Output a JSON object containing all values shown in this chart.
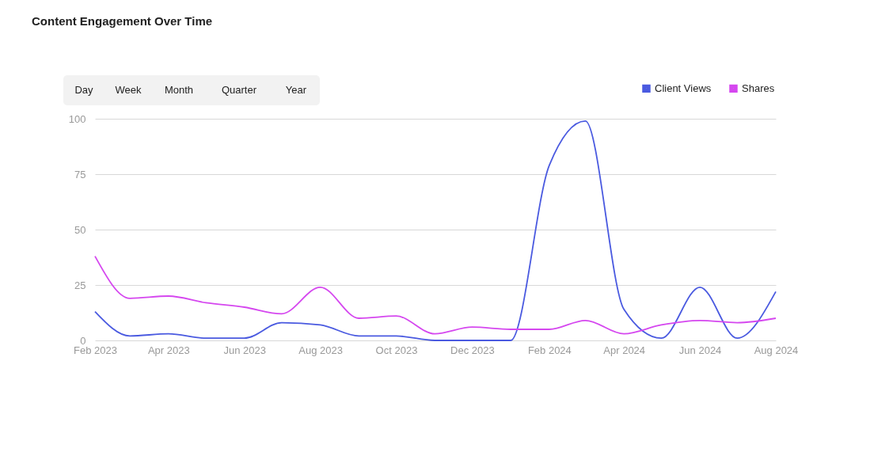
{
  "chart_data": {
    "type": "line",
    "title": "Content Engagement Over Time",
    "annotations": [
      "Day",
      "Week",
      "Month",
      "Quarter",
      "Year"
    ],
    "x": [
      "2023-02",
      "2023-03",
      "2023-04",
      "2023-05",
      "2023-06",
      "2023-07",
      "2023-08",
      "2023-09",
      "2023-10",
      "2023-11",
      "2023-12",
      "2024-01",
      "2024-02",
      "2024-03",
      "2024-04",
      "2024-05",
      "2024-06",
      "2024-07",
      "2024-08"
    ],
    "series": [
      {
        "name": "Client Views",
        "color": "#4a5ae0",
        "values": [
          13,
          2,
          3,
          1,
          1,
          8,
          7,
          2,
          2,
          0,
          0,
          0,
          79,
          99,
          14,
          1,
          24,
          1,
          22
        ]
      },
      {
        "name": "Shares",
        "color": "#d547ef",
        "values": [
          38,
          19,
          20,
          17,
          15,
          12,
          24,
          10,
          11,
          3,
          6,
          5,
          5,
          9,
          3,
          7,
          9,
          8,
          10
        ]
      }
    ],
    "xlim": [
      "2023-02",
      "2024-08"
    ],
    "xticks": [
      {
        "value": "2023-02",
        "label": "Feb 2023"
      },
      {
        "value": "2023-04",
        "label": "Apr 2023"
      },
      {
        "value": "2023-06",
        "label": "Jun 2023"
      },
      {
        "value": "2023-08",
        "label": "Aug 2023"
      },
      {
        "value": "2023-10",
        "label": "Oct 2023"
      },
      {
        "value": "2023-12",
        "label": "Dec 2023"
      },
      {
        "value": "2024-02",
        "label": "Feb 2024"
      },
      {
        "value": "2024-04",
        "label": "Apr 2024"
      },
      {
        "value": "2024-06",
        "label": "Jun 2024"
      },
      {
        "value": "2024-08",
        "label": "Aug 2024"
      }
    ],
    "ylim": [
      0,
      100
    ],
    "yticks": [
      0,
      25,
      50,
      75,
      100
    ],
    "grid": "y",
    "legend": "top right",
    "marker": "none",
    "line_style": "solid"
  }
}
